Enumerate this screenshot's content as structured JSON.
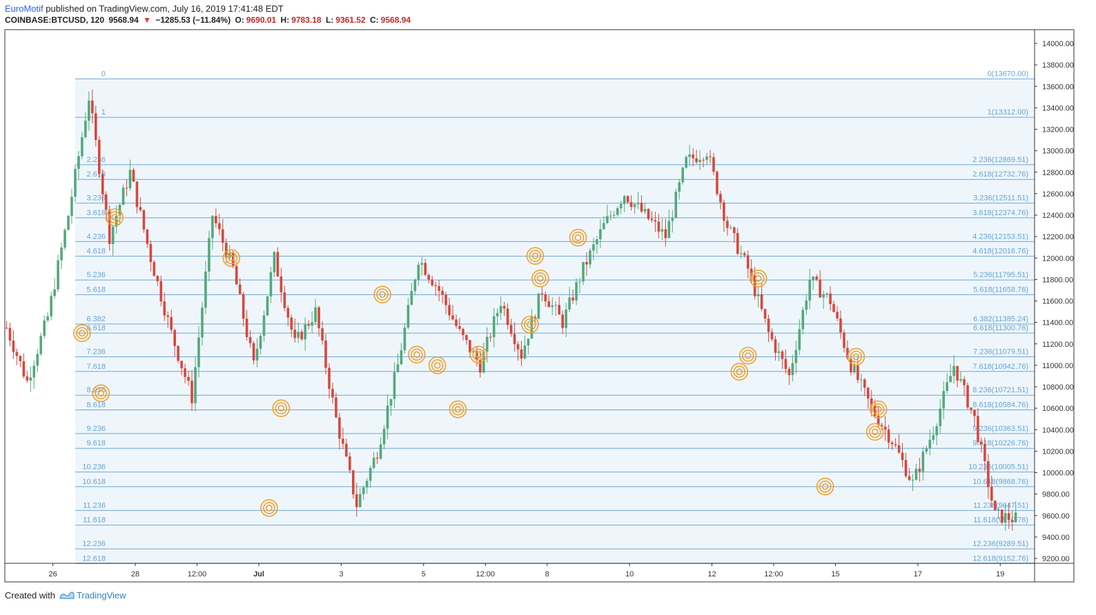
{
  "header": {
    "author": "EuroMotif",
    "published_text": "published on TradingView.com, July 16, 2019 17:41:48 EDT",
    "symbol": "COINBASE:BTCUSD, 120",
    "last_price": "9568.94",
    "change_arrow": "▼",
    "change": "−1285.53 (−11.84%)",
    "o_label": "O:",
    "o_value": "9690.01",
    "h_label": "H:",
    "h_value": "9783.18",
    "l_label": "L:",
    "l_value": "9361.52",
    "c_label": "C:",
    "c_value": "9568.94"
  },
  "footer": {
    "created_with": "Created with",
    "brand": "TradingView"
  },
  "colors": {
    "up": "#53a97a",
    "down": "#d9473a",
    "fib_line": "#6fa6d6",
    "fib_fill": "#eef6fc",
    "circle": "#f0a030",
    "axis_text": "#333333",
    "border": "#333333"
  },
  "chart_data": {
    "type": "candlestick",
    "ylim": [
      9100,
      14100
    ],
    "y_ticks": [
      "14000.00",
      "13800.00",
      "13600.00",
      "13400.00",
      "13200.00",
      "13000.00",
      "12800.00",
      "12600.00",
      "12400.00",
      "12200.00",
      "12000.00",
      "11800.00",
      "11600.00",
      "11400.00",
      "11200.00",
      "11000.00",
      "10800.00",
      "10600.00",
      "10400.00",
      "10200.00",
      "10000.00",
      "9800.00",
      "9600.00",
      "9400.00",
      "9200.00"
    ],
    "x_ticks": [
      {
        "label": "26",
        "bold": false,
        "t": 14
      },
      {
        "label": "28",
        "bold": false,
        "t": 38
      },
      {
        "label": "12:00",
        "bold": false,
        "t": 56
      },
      {
        "label": "Jul",
        "bold": true,
        "t": 74
      },
      {
        "label": "3",
        "bold": false,
        "t": 98
      },
      {
        "label": "5",
        "bold": false,
        "t": 122
      },
      {
        "label": "12:00",
        "bold": false,
        "t": 140
      },
      {
        "label": "8",
        "bold": false,
        "t": 158
      },
      {
        "label": "10",
        "bold": false,
        "t": 182
      },
      {
        "label": "12",
        "bold": false,
        "t": 206
      },
      {
        "label": "12:00",
        "bold": false,
        "t": 224
      },
      {
        "label": "15",
        "bold": false,
        "t": 242
      },
      {
        "label": "17",
        "bold": false,
        "t": 266
      },
      {
        "label": "19",
        "bold": false,
        "t": 290
      }
    ],
    "fib_levels": [
      {
        "left": "0",
        "right": "0(13670.00)",
        "price": 13670.0
      },
      {
        "left": "1",
        "right": "1(13312.00)",
        "price": 13312.0
      },
      {
        "left": "2.236",
        "right": "2.236(12869.51)",
        "price": 12869.51
      },
      {
        "left": "2.618",
        "right": "2.618(12732.76)",
        "price": 12732.76
      },
      {
        "left": "3.236",
        "right": "3.236(12511.51)",
        "price": 12511.51
      },
      {
        "left": "3.618",
        "right": "3.618(12374.76)",
        "price": 12374.76
      },
      {
        "left": "4.236",
        "right": "4.236(12153.51)",
        "price": 12153.51
      },
      {
        "left": "4.618",
        "right": "4.618(12016.76)",
        "price": 12016.76
      },
      {
        "left": "5.236",
        "right": "5.236(11795.51)",
        "price": 11795.51
      },
      {
        "left": "5.618",
        "right": "5.618(11658.76)",
        "price": 11658.76
      },
      {
        "left": "6.382",
        "right": "6.382(11385.24)",
        "price": 11385.24
      },
      {
        "left": "6.618",
        "right": "6.618(11300.76)",
        "price": 11300.76
      },
      {
        "left": "7.236",
        "right": "7.236(11079.51)",
        "price": 11079.51
      },
      {
        "left": "7.618",
        "right": "7.618(10942.76)",
        "price": 10942.76
      },
      {
        "left": "8.236",
        "right": "8.236(10721.51)",
        "price": 10721.51
      },
      {
        "left": "8.618",
        "right": "8.618(10584.76)",
        "price": 10584.76
      },
      {
        "left": "9.236",
        "right": "9.236(10363.51)",
        "price": 10363.51
      },
      {
        "left": "9.618",
        "right": "9.618(10226.76)",
        "price": 10226.76
      },
      {
        "left": "10.236",
        "right": "10.236(10005.51)",
        "price": 10005.51
      },
      {
        "left": "10.618",
        "right": "10.618(9868.76)",
        "price": 9868.76
      },
      {
        "left": "11.236",
        "right": "11.236(9647.51)",
        "price": 9647.51
      },
      {
        "left": "11.618",
        "right": "11.618(9510.76)",
        "price": 9510.76
      },
      {
        "left": "12.236",
        "right": "12.236(9289.51)",
        "price": 9289.51
      },
      {
        "left": "12.618",
        "right": "12.618(9152.76)",
        "price": 9152.76
      }
    ],
    "anchors": [
      11350,
      10850,
      11450,
      12400,
      13500,
      12200,
      12800,
      12000,
      11300,
      10700,
      12400,
      11900,
      11000,
      12000,
      11200,
      11500,
      10500,
      9700,
      10200,
      11000,
      12000,
      11700,
      11300,
      11000,
      11600,
      11100,
      11700,
      11400,
      11900,
      12300,
      12600,
      12400,
      12200,
      12900,
      13000,
      12300,
      11900,
      11300,
      10900,
      11800,
      11600,
      11000,
      10600,
      10300,
      9900,
      10400,
      11000,
      10500,
      9600,
      9569
    ],
    "circles": [
      {
        "t": 22.5,
        "price": 11300
      },
      {
        "t": 28,
        "price": 10740
      },
      {
        "t": 32,
        "price": 12380
      },
      {
        "t": 66,
        "price": 12000
      },
      {
        "t": 77,
        "price": 9670
      },
      {
        "t": 80.5,
        "price": 10600
      },
      {
        "t": 110,
        "price": 11660
      },
      {
        "t": 120,
        "price": 11100
      },
      {
        "t": 126,
        "price": 11000
      },
      {
        "t": 132,
        "price": 10590
      },
      {
        "t": 138,
        "price": 11100
      },
      {
        "t": 153,
        "price": 11380
      },
      {
        "t": 154.5,
        "price": 12020
      },
      {
        "t": 156,
        "price": 11810
      },
      {
        "t": 167,
        "price": 12190
      },
      {
        "t": 214,
        "price": 10940
      },
      {
        "t": 216.5,
        "price": 11090
      },
      {
        "t": 219.5,
        "price": 11810
      },
      {
        "t": 239,
        "price": 9870
      },
      {
        "t": 248,
        "price": 11080
      },
      {
        "t": 253.5,
        "price": 10380
      },
      {
        "t": 254.5,
        "price": 10590
      }
    ]
  }
}
